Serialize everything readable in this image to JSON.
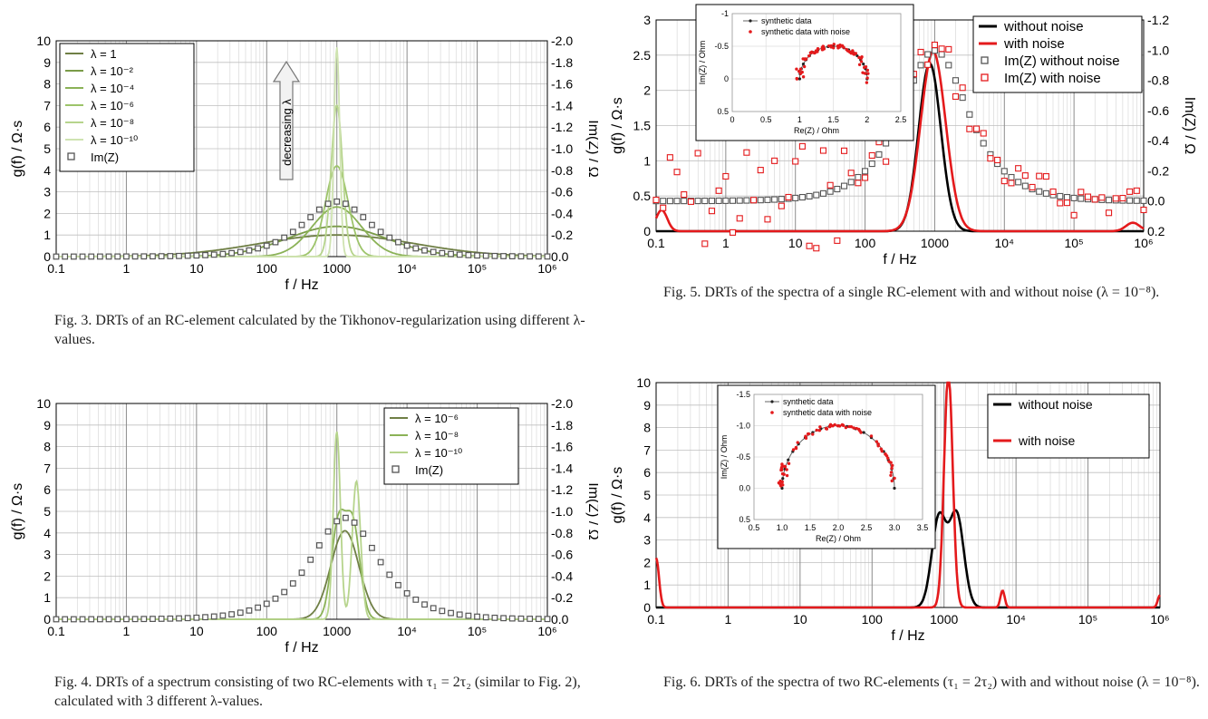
{
  "colors": {
    "l1": "#6f7f45",
    "l2": "#7a9b48",
    "l3": "#8bb257",
    "l4": "#9dc46a",
    "l5": "#b6d48c",
    "l6": "#cfe3b1",
    "black": "#000000",
    "red": "#e41a1c",
    "marker": "#555555"
  },
  "shared": {
    "x_ticks": [
      "0.1",
      "1",
      "10",
      "100",
      "1000",
      "10⁴",
      "10⁵",
      "10⁶"
    ],
    "xlabel": "f / Hz",
    "ylabel_left": "g(f) / Ω·s",
    "ylabel_right": "Im(Z) / Ω"
  },
  "figures": [
    {
      "id": "fig3",
      "caption": "Fig. 3.   DRTs of an RC-element calculated by the Tikhonov-regularization using different λ-values.",
      "annotation": "decreasing λ",
      "chart_data": {
        "type": "line",
        "xscale": "log",
        "xlim": [
          0.1,
          1000000
        ],
        "ylim": [
          0,
          10
        ],
        "y2lim": [
          0,
          -2.0
        ],
        "y_ticks": [
          "0",
          "1",
          "2",
          "3",
          "4",
          "5",
          "6",
          "7",
          "8",
          "9",
          "10"
        ],
        "y2_ticks": [
          "0.0",
          "-0.2",
          "-0.4",
          "-0.6",
          "-0.8",
          "-1.0",
          "-1.2",
          "-1.4",
          "-1.6",
          "-1.8",
          "-2.0"
        ],
        "legend": "top-left",
        "series": [
          {
            "name": "λ = 1",
            "color": "l1",
            "peak": 1000,
            "height": 1.0,
            "width": 1.1
          },
          {
            "name": "λ = 10⁻²",
            "color": "l2",
            "peak": 1000,
            "height": 1.4,
            "width": 0.7
          },
          {
            "name": "λ = 10⁻⁴",
            "color": "l3",
            "peak": 1000,
            "height": 2.3,
            "width": 0.35
          },
          {
            "name": "λ = 10⁻⁶",
            "color": "l4",
            "peak": 1000,
            "height": 4.2,
            "width": 0.16
          },
          {
            "name": "λ = 10⁻⁸",
            "color": "l5",
            "peak": 1000,
            "height": 7.0,
            "width": 0.08
          },
          {
            "name": "λ = 10⁻¹⁰",
            "color": "l6",
            "peak": 1000,
            "height": 9.7,
            "width": 0.04
          }
        ],
        "markers": {
          "name": "Im(Z)",
          "model": "rc",
          "peak": 1000,
          "amplitude": 2.55
        }
      }
    },
    {
      "id": "fig4",
      "caption": "Fig. 4.   DRTs of a spectrum consisting of two RC-elements with τ₁ = 2τ₂ (similar to Fig. 2), calculated with 3 different λ-values.",
      "chart_data": {
        "type": "line",
        "xscale": "log",
        "xlim": [
          0.1,
          1000000
        ],
        "ylim": [
          0,
          10
        ],
        "y2lim": [
          0,
          -2.0
        ],
        "y_ticks": [
          "0",
          "1",
          "2",
          "3",
          "4",
          "5",
          "6",
          "7",
          "8",
          "9",
          "10"
        ],
        "y2_ticks": [
          "0.0",
          "-0.2",
          "-0.4",
          "-0.6",
          "-0.8",
          "-1.0",
          "-1.2",
          "-1.4",
          "-1.6",
          "-1.8",
          "-2.0"
        ],
        "legend": "top-right",
        "series": [
          {
            "name": "λ = 10⁻⁶",
            "color": "l1",
            "peaks": [
              [
                1300,
                4.1,
                0.2
              ]
            ]
          },
          {
            "name": "λ = 10⁻⁸",
            "color": "l3",
            "peaks": [
              [
                1050,
                4.4,
                0.1
              ],
              [
                1700,
                4.3,
                0.1
              ]
            ]
          },
          {
            "name": "λ = 10⁻¹⁰",
            "color": "l5",
            "peaks": [
              [
                1000,
                8.7,
                0.05
              ],
              [
                1900,
                6.4,
                0.06
              ]
            ]
          }
        ],
        "markers": {
          "name": "Im(Z)",
          "model": "rc2",
          "peak": 1300,
          "amplitude": 4.7
        }
      }
    },
    {
      "id": "fig5",
      "caption": "Fig. 5.   DRTs of the spectra of a single RC-element with and without noise (λ = 10⁻⁸).",
      "chart_data": {
        "type": "line",
        "xscale": "log",
        "xlim": [
          0.1,
          1000000
        ],
        "ylim": [
          0,
          3
        ],
        "y2lim": [
          0.2,
          -1.2
        ],
        "y_ticks": [
          "0",
          "0.5",
          "1",
          "1.5",
          "2",
          "2.5",
          "3"
        ],
        "y2_ticks": [
          "0.2",
          "0.0",
          "-0.2",
          "-0.4",
          "-0.6",
          "-0.8",
          "-1.0",
          "-1.2"
        ],
        "legend": "top-right",
        "series": [
          {
            "name": "without noise",
            "color": "black",
            "peaks": [
              [
                850,
                2.38,
                0.16
              ]
            ]
          },
          {
            "name": "with noise",
            "color": "red",
            "peaks": [
              [
                950,
                2.55,
                0.18
              ],
              [
                0.12,
                0.3,
                0.08
              ],
              [
                700000,
                0.12,
                0.1
              ]
            ]
          }
        ],
        "markers_series": [
          {
            "name": "Im(Z) without noise",
            "color": "marker",
            "peak": 1000,
            "amplitude": 1.05,
            "offset": 0.0
          },
          {
            "name": "Im(Z) with noise",
            "color": "red",
            "peak": 1000,
            "amplitude": 1.05,
            "offset": 0.0,
            "noisy": true
          }
        ],
        "inset": {
          "xlabel": "Re(Z) / Ohm",
          "ylabel": "Im(Z) / Ohm",
          "x_ticks": [
            "0",
            "0.5",
            "1",
            "1.5",
            "2",
            "2.5"
          ],
          "y_ticks": [
            "-1",
            "-0.5",
            "0",
            "0.5"
          ],
          "xlim": [
            0,
            2.5
          ],
          "ylim": [
            0.5,
            -1
          ],
          "legend": [
            "synthetic data",
            "synthetic data with noise"
          ],
          "center": 1.5,
          "radius": 0.5
        }
      }
    },
    {
      "id": "fig6",
      "caption": "Fig. 6.   DRTs of the spectra of two RC-elements (τ₁ = 2τ₂) with and without noise (λ = 10⁻⁸).",
      "chart_data": {
        "type": "line",
        "xscale": "log",
        "xlim": [
          0.1,
          1000000
        ],
        "ylim": [
          0,
          10
        ],
        "y_ticks": [
          "0",
          "1",
          "2",
          "3",
          "4",
          "5",
          "6",
          "7",
          "8",
          "9",
          "10"
        ],
        "legend": "top-right",
        "series": [
          {
            "name": "without noise",
            "color": "black",
            "peaks": [
              [
                850,
                4.0,
                0.1
              ],
              [
                1500,
                4.1,
                0.1
              ]
            ]
          },
          {
            "name": "with noise",
            "color": "red",
            "peaks": [
              [
                1150,
                10.4,
                0.06
              ],
              [
                6500,
                0.75,
                0.03
              ],
              [
                0.1,
                2.2,
                0.04
              ],
              [
                1000000,
                0.55,
                0.03
              ]
            ]
          }
        ],
        "inset": {
          "xlabel": "Re(Z) / Ohm",
          "ylabel": "Im(Z) / Ohm",
          "x_ticks": [
            "0.5",
            "1.0",
            "1.5",
            "2.0",
            "2.5",
            "3.0",
            "3.5"
          ],
          "y_ticks": [
            "-1.5",
            "-1.0",
            "-0.5",
            "0.0",
            "0.5"
          ],
          "xlim": [
            0.5,
            3.5
          ],
          "ylim": [
            0.5,
            -1.5
          ],
          "legend": [
            "synthetic data",
            "synthetic data with noise"
          ],
          "center": 2.0,
          "radius": 1.0
        }
      }
    }
  ]
}
